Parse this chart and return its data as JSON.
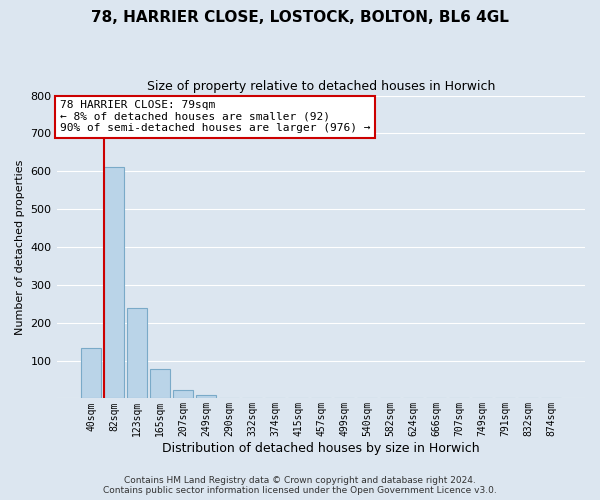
{
  "title1": "78, HARRIER CLOSE, LOSTOCK, BOLTON, BL6 4GL",
  "title2": "Size of property relative to detached houses in Horwich",
  "xlabel": "Distribution of detached houses by size in Horwich",
  "ylabel": "Number of detached properties",
  "bar_labels": [
    "40sqm",
    "82sqm",
    "123sqm",
    "165sqm",
    "207sqm",
    "249sqm",
    "290sqm",
    "332sqm",
    "374sqm",
    "415sqm",
    "457sqm",
    "499sqm",
    "540sqm",
    "582sqm",
    "624sqm",
    "666sqm",
    "707sqm",
    "749sqm",
    "791sqm",
    "832sqm",
    "874sqm"
  ],
  "bar_heights": [
    133,
    610,
    240,
    79,
    22,
    9,
    0,
    0,
    0,
    0,
    0,
    0,
    0,
    0,
    0,
    0,
    0,
    0,
    0,
    0,
    0
  ],
  "bar_color": "#bad4e8",
  "bar_edge_color": "#7aaac8",
  "ylim": [
    0,
    800
  ],
  "yticks": [
    0,
    100,
    200,
    300,
    400,
    500,
    600,
    700,
    800
  ],
  "annotation_title": "78 HARRIER CLOSE: 79sqm",
  "annotation_line1": "← 8% of detached houses are smaller (92)",
  "annotation_line2": "90% of semi-detached houses are larger (976) →",
  "annotation_box_facecolor": "#ffffff",
  "annotation_box_edgecolor": "#cc0000",
  "footer1": "Contains HM Land Registry data © Crown copyright and database right 2024.",
  "footer2": "Contains public sector information licensed under the Open Government Licence v3.0.",
  "background_color": "#dce6f0",
  "plot_bg_color": "#dce6f0",
  "grid_color": "#ffffff",
  "red_line_color": "#cc0000",
  "title1_fontsize": 11,
  "title2_fontsize": 9
}
